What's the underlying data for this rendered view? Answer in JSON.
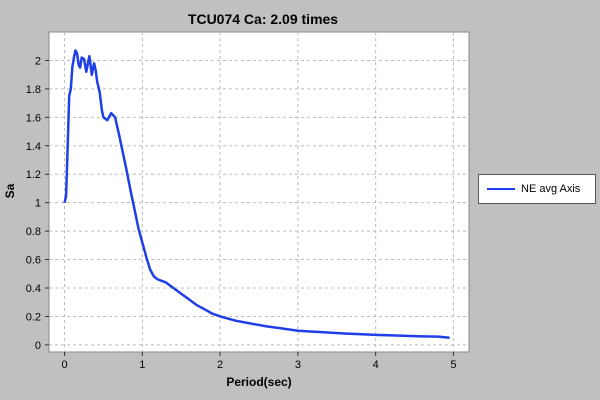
{
  "chart_data": {
    "type": "line",
    "title": "TCU074 Ca: 2.09 times",
    "xlabel": "Period(sec)",
    "ylabel": "Sa",
    "xlim": [
      -0.2,
      5.2
    ],
    "ylim": [
      -0.05,
      2.2
    ],
    "x_ticks": [
      0,
      1,
      2,
      3,
      4,
      5
    ],
    "y_ticks": [
      0,
      0.2,
      0.4,
      0.6,
      0.8,
      1,
      1.2,
      1.4,
      1.6,
      1.8,
      2
    ],
    "grid": true,
    "legend_position": "right",
    "series": [
      {
        "name": "NE avg Axis",
        "color": "#1f3fe8",
        "x": [
          0,
          0.02,
          0.04,
          0.06,
          0.08,
          0.1,
          0.12,
          0.14,
          0.16,
          0.18,
          0.2,
          0.22,
          0.25,
          0.28,
          0.3,
          0.32,
          0.35,
          0.38,
          0.4,
          0.42,
          0.45,
          0.48,
          0.5,
          0.55,
          0.6,
          0.65,
          0.7,
          0.75,
          0.8,
          0.85,
          0.9,
          0.95,
          1.0,
          1.05,
          1.1,
          1.15,
          1.2,
          1.25,
          1.3,
          1.35,
          1.4,
          1.5,
          1.6,
          1.7,
          1.8,
          1.9,
          2.0,
          2.2,
          2.4,
          2.6,
          2.8,
          3.0,
          3.3,
          3.6,
          4.0,
          4.3,
          4.6,
          4.8,
          4.95
        ],
        "y": [
          1.0,
          1.05,
          1.4,
          1.75,
          1.8,
          1.95,
          2.02,
          2.07,
          2.05,
          1.97,
          1.95,
          2.02,
          2.01,
          1.92,
          1.98,
          2.03,
          1.9,
          1.98,
          1.93,
          1.85,
          1.78,
          1.65,
          1.6,
          1.58,
          1.63,
          1.6,
          1.48,
          1.35,
          1.22,
          1.08,
          0.95,
          0.82,
          0.72,
          0.62,
          0.53,
          0.48,
          0.46,
          0.45,
          0.44,
          0.42,
          0.4,
          0.36,
          0.32,
          0.28,
          0.25,
          0.22,
          0.2,
          0.17,
          0.15,
          0.13,
          0.115,
          0.1,
          0.09,
          0.08,
          0.07,
          0.065,
          0.06,
          0.058,
          0.05
        ]
      }
    ]
  }
}
